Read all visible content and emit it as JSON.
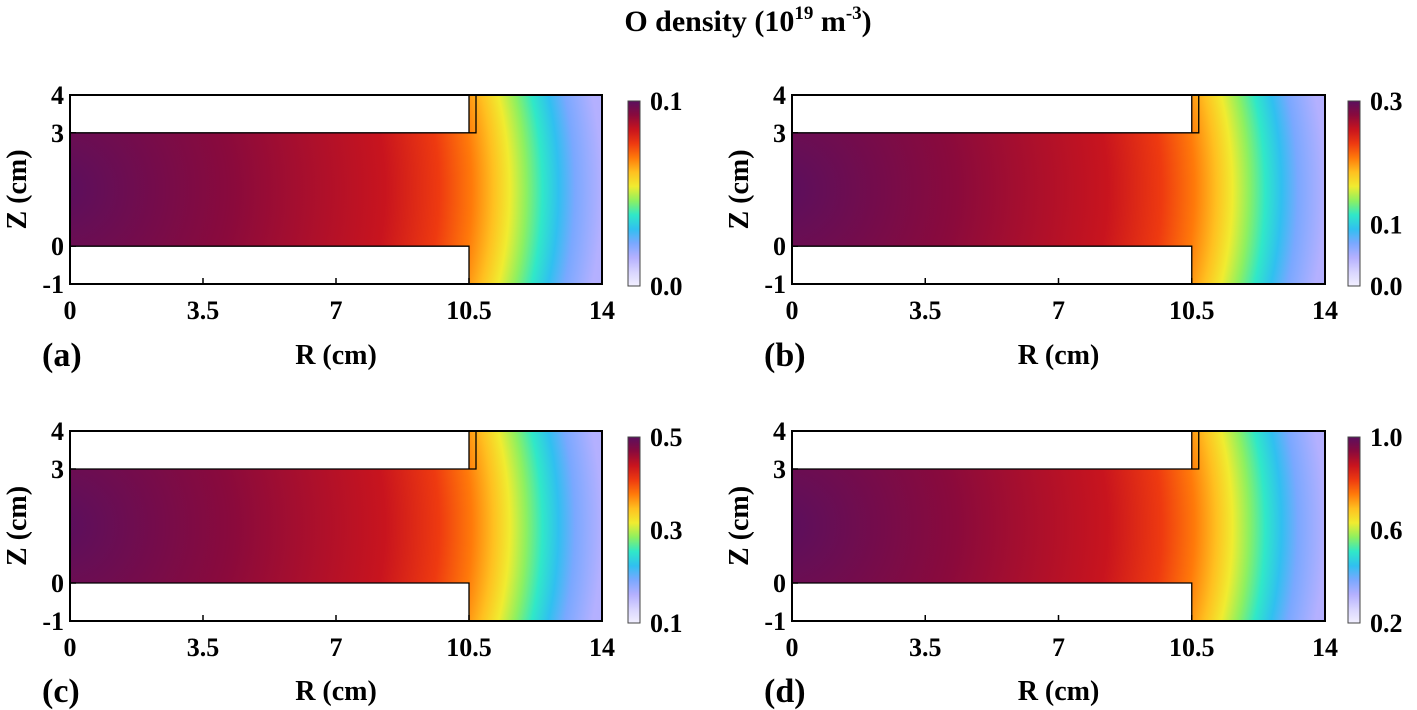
{
  "figure": {
    "title_main": "O density (10",
    "title_exp1": "19",
    "title_mid": " m",
    "title_exp2": "-3",
    "title_end": ")"
  },
  "chart_data": [
    {
      "type": "heatmap",
      "panel_label": "(a)",
      "xlabel": "R (cm)",
      "ylabel": "Z (cm)",
      "xlim": [
        0,
        14
      ],
      "ylim": [
        -1,
        4
      ],
      "xticks": [
        "0",
        "3.5",
        "7",
        "10.5",
        "14"
      ],
      "yticks": [
        "-1",
        "0",
        "3",
        "4"
      ],
      "colorbar_ticks": [
        "0.0",
        "0.1"
      ],
      "colorbar_range": [
        0.0,
        0.1
      ],
      "peak_value": 0.1,
      "min_value": 0.0
    },
    {
      "type": "heatmap",
      "panel_label": "(b)",
      "xlabel": "R (cm)",
      "ylabel": "Z (cm)",
      "xlim": [
        0,
        14
      ],
      "ylim": [
        -1,
        4
      ],
      "xticks": [
        "0",
        "3.5",
        "7",
        "10.5",
        "14"
      ],
      "yticks": [
        "-1",
        "0",
        "3",
        "4"
      ],
      "colorbar_ticks": [
        "0.0",
        "0.1",
        "0.3"
      ],
      "colorbar_range": [
        0.0,
        0.3
      ],
      "peak_value": 0.3,
      "min_value": 0.0
    },
    {
      "type": "heatmap",
      "panel_label": "(c)",
      "xlabel": "R (cm)",
      "ylabel": "Z (cm)",
      "xlim": [
        0,
        14
      ],
      "ylim": [
        -1,
        4
      ],
      "xticks": [
        "0",
        "3.5",
        "7",
        "10.5",
        "14"
      ],
      "yticks": [
        "-1",
        "0",
        "3",
        "4"
      ],
      "colorbar_ticks": [
        "0.1",
        "0.3",
        "0.5"
      ],
      "colorbar_range": [
        0.1,
        0.5
      ],
      "peak_value": 0.5,
      "min_value": 0.1
    },
    {
      "type": "heatmap",
      "panel_label": "(d)",
      "xlabel": "R (cm)",
      "ylabel": "Z (cm)",
      "xlim": [
        0,
        14
      ],
      "ylim": [
        -1,
        4
      ],
      "xticks": [
        "0",
        "3.5",
        "7",
        "10.5",
        "14"
      ],
      "yticks": [
        "-1",
        "0",
        "3",
        "4"
      ],
      "colorbar_ticks": [
        "0.2",
        "0.6",
        "1.0"
      ],
      "colorbar_range": [
        0.2,
        1.0
      ],
      "peak_value": 1.0,
      "min_value": 0.2
    }
  ],
  "colormap": [
    "#5a0f5e",
    "#8a0a3c",
    "#c8141e",
    "#ee3a10",
    "#ff7a0a",
    "#ffc020",
    "#f0ec30",
    "#8ef060",
    "#30e8c8",
    "#30c0f0",
    "#7aa8ff",
    "#b4b0ff",
    "#d8d4ff",
    "#f2f0ff"
  ]
}
